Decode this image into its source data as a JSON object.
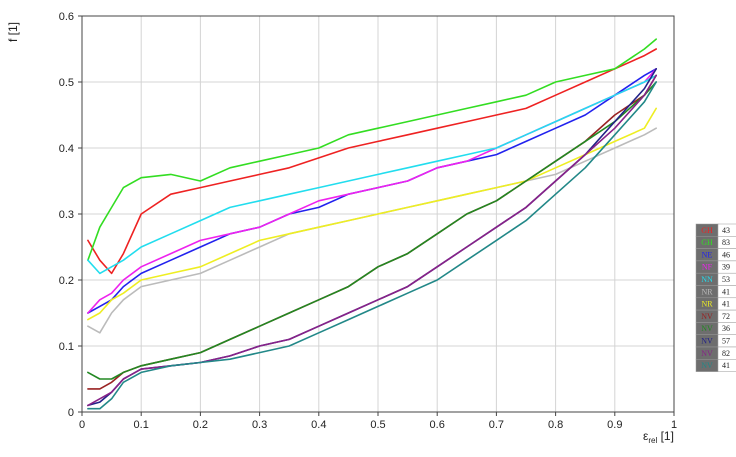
{
  "chart_data": {
    "type": "line",
    "ylabel": "f [1]",
    "xlabel_main": "ε",
    "xlabel_sub": "rel",
    "xlabel_unit": " [1]",
    "xlim": [
      0,
      1
    ],
    "ylim": [
      0,
      0.6
    ],
    "x_ticks": [
      "0",
      "0.1",
      "0.2",
      "0.3",
      "0.4",
      "0.5",
      "0.6",
      "0.7",
      "0.8",
      "0.9",
      "1"
    ],
    "y_ticks": [
      "0",
      "0.1",
      "0.2",
      "0.3",
      "0.4",
      "0.5",
      "0.6"
    ],
    "grid": true,
    "legend_position": "right",
    "x": [
      0.01,
      0.03,
      0.05,
      0.07,
      0.1,
      0.15,
      0.2,
      0.25,
      0.3,
      0.35,
      0.4,
      0.45,
      0.5,
      0.55,
      0.6,
      0.65,
      0.7,
      0.75,
      0.8,
      0.85,
      0.9,
      0.95,
      0.97
    ],
    "series": [
      {
        "name": "GH",
        "count": "43",
        "color": "#ee2222",
        "values": [
          0.26,
          0.23,
          0.21,
          0.24,
          0.3,
          0.33,
          0.34,
          0.35,
          0.36,
          0.37,
          0.385,
          0.4,
          0.41,
          0.42,
          0.43,
          0.44,
          0.45,
          0.46,
          0.48,
          0.5,
          0.52,
          0.54,
          0.55
        ]
      },
      {
        "name": "GH",
        "count": "83",
        "color": "#33dd22",
        "values": [
          0.23,
          0.28,
          0.31,
          0.34,
          0.355,
          0.36,
          0.35,
          0.37,
          0.38,
          0.39,
          0.4,
          0.42,
          0.43,
          0.44,
          0.45,
          0.46,
          0.47,
          0.48,
          0.5,
          0.51,
          0.52,
          0.55,
          0.565
        ]
      },
      {
        "name": "NE",
        "count": "46",
        "color": "#2222ee",
        "values": [
          0.15,
          0.16,
          0.17,
          0.19,
          0.21,
          0.23,
          0.25,
          0.27,
          0.28,
          0.3,
          0.31,
          0.33,
          0.34,
          0.35,
          0.37,
          0.38,
          0.39,
          0.41,
          0.43,
          0.45,
          0.48,
          0.51,
          0.52
        ]
      },
      {
        "name": "NF",
        "count": "39",
        "color": "#ee22ee",
        "values": [
          0.15,
          0.17,
          0.18,
          0.2,
          0.22,
          0.24,
          0.26,
          0.27,
          0.28,
          0.3,
          0.32,
          0.33,
          0.34,
          0.35,
          0.37,
          0.38,
          0.4,
          0.42,
          0.44,
          0.46,
          0.48,
          0.5,
          0.52
        ]
      },
      {
        "name": "NN",
        "count": "53",
        "color": "#22ddee",
        "values": [
          0.23,
          0.21,
          0.22,
          0.23,
          0.25,
          0.27,
          0.29,
          0.31,
          0.32,
          0.33,
          0.34,
          0.35,
          0.36,
          0.37,
          0.38,
          0.39,
          0.4,
          0.42,
          0.44,
          0.46,
          0.48,
          0.5,
          0.51
        ]
      },
      {
        "name": "NR",
        "count": "41",
        "color": "#bbbbbb",
        "values": [
          0.13,
          0.12,
          0.15,
          0.17,
          0.19,
          0.2,
          0.21,
          0.23,
          0.25,
          0.27,
          0.28,
          0.29,
          0.3,
          0.31,
          0.32,
          0.33,
          0.34,
          0.35,
          0.36,
          0.38,
          0.4,
          0.42,
          0.43
        ]
      },
      {
        "name": "NR",
        "count": "41",
        "color": "#eeee22",
        "values": [
          0.14,
          0.15,
          0.17,
          0.18,
          0.2,
          0.21,
          0.22,
          0.24,
          0.26,
          0.27,
          0.28,
          0.29,
          0.3,
          0.31,
          0.32,
          0.33,
          0.34,
          0.35,
          0.37,
          0.39,
          0.41,
          0.43,
          0.46
        ]
      },
      {
        "name": "NV",
        "count": "72",
        "color": "#992222",
        "values": [
          0.035,
          0.035,
          0.045,
          0.06,
          0.07,
          0.08,
          0.09,
          0.11,
          0.13,
          0.15,
          0.17,
          0.19,
          0.22,
          0.24,
          0.27,
          0.3,
          0.32,
          0.35,
          0.38,
          0.41,
          0.45,
          0.48,
          0.51
        ]
      },
      {
        "name": "NV",
        "count": "36",
        "color": "#228822",
        "values": [
          0.06,
          0.05,
          0.05,
          0.06,
          0.07,
          0.08,
          0.09,
          0.11,
          0.13,
          0.15,
          0.17,
          0.19,
          0.22,
          0.24,
          0.27,
          0.3,
          0.32,
          0.35,
          0.38,
          0.41,
          0.44,
          0.48,
          0.5
        ]
      },
      {
        "name": "NV",
        "count": "57",
        "color": "#222288",
        "values": [
          0.01,
          0.015,
          0.03,
          0.05,
          0.065,
          0.07,
          0.075,
          0.085,
          0.1,
          0.11,
          0.13,
          0.15,
          0.17,
          0.19,
          0.22,
          0.25,
          0.28,
          0.31,
          0.35,
          0.39,
          0.44,
          0.49,
          0.52
        ]
      },
      {
        "name": "NV",
        "count": "82",
        "color": "#882288",
        "values": [
          0.01,
          0.02,
          0.03,
          0.05,
          0.065,
          0.07,
          0.075,
          0.085,
          0.1,
          0.11,
          0.13,
          0.15,
          0.17,
          0.19,
          0.22,
          0.25,
          0.28,
          0.31,
          0.35,
          0.39,
          0.43,
          0.48,
          0.51
        ]
      },
      {
        "name": "NV",
        "count": "41",
        "color": "#228888",
        "values": [
          0.005,
          0.005,
          0.02,
          0.045,
          0.06,
          0.07,
          0.075,
          0.08,
          0.09,
          0.1,
          0.12,
          0.14,
          0.16,
          0.18,
          0.2,
          0.23,
          0.26,
          0.29,
          0.33,
          0.37,
          0.42,
          0.47,
          0.5
        ]
      }
    ]
  }
}
